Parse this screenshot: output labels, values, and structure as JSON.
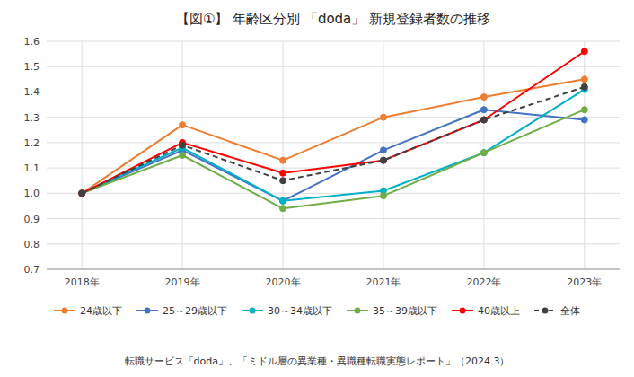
{
  "chart_data": {
    "type": "line",
    "title": "【図①】 年齢区分別 「doda」 新規登録者数の推移",
    "subtitle": "転職サービス「doda」、「ミドル層の異業種・異職種転職実態レポート」（2024.3）",
    "x": [
      2018,
      2019,
      2020,
      2021,
      2022,
      2023
    ],
    "xlim": [
      2017.65,
      2023.35
    ],
    "xticks": [
      {
        "value": 2018,
        "label": "2018年"
      },
      {
        "value": 2019,
        "label": "2019年"
      },
      {
        "value": 2020,
        "label": "2020年"
      },
      {
        "value": 2021,
        "label": "2021年"
      },
      {
        "value": 2022,
        "label": "2022年"
      },
      {
        "value": 2023,
        "label": "2023年"
      }
    ],
    "ylim": [
      0.7,
      1.6
    ],
    "yticks": [
      0.7,
      0.8,
      0.9,
      {
        "value": 1.0,
        "label": "1.0"
      },
      1.1,
      1.2,
      1.3,
      1.4,
      1.5,
      1.6
    ],
    "grid": true,
    "legend": "bottom",
    "series": [
      {
        "name": "24歳以下",
        "color": "#ED7D31",
        "marker": "circle",
        "line_style": "solid",
        "values": [
          1.0,
          1.27,
          1.13,
          1.3,
          1.38,
          1.45
        ]
      },
      {
        "name": "25～29歳以下",
        "color": "#4472C4",
        "marker": "circle",
        "line_style": "solid",
        "values": [
          1.0,
          1.17,
          0.97,
          1.17,
          1.33,
          1.29
        ]
      },
      {
        "name": "30～34歳以下",
        "color": "#00B0C8",
        "marker": "circle",
        "line_style": "solid",
        "values": [
          1.0,
          1.18,
          0.97,
          1.01,
          1.16,
          1.41
        ]
      },
      {
        "name": "35～39歳以下",
        "color": "#70AD47",
        "marker": "circle",
        "line_style": "solid",
        "values": [
          1.0,
          1.15,
          0.94,
          0.99,
          1.16,
          1.33
        ]
      },
      {
        "name": "40歳以上",
        "color": "#FF0000",
        "marker": "circle",
        "line_style": "solid",
        "values": [
          1.0,
          1.2,
          1.08,
          1.13,
          1.29,
          1.56
        ]
      },
      {
        "name": "全体",
        "color": "#404040",
        "marker": "circle",
        "line_style": "dashed",
        "values": [
          1.0,
          1.19,
          1.05,
          1.13,
          1.29,
          1.42
        ]
      }
    ]
  }
}
